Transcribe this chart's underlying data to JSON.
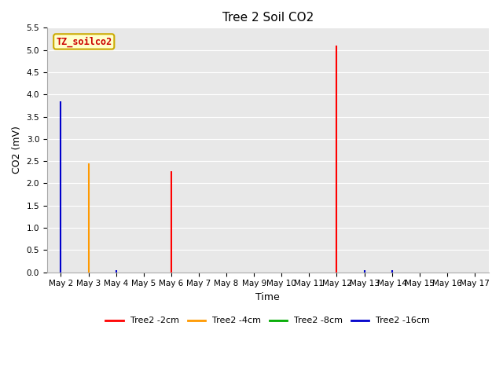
{
  "title": "Tree 2 Soil CO2",
  "xlabel": "Time",
  "ylabel": "CO2 (mV)",
  "ylim": [
    0.0,
    5.5
  ],
  "yticks": [
    0.0,
    0.5,
    1.0,
    1.5,
    2.0,
    2.5,
    3.0,
    3.5,
    4.0,
    4.5,
    5.0,
    5.5
  ],
  "annotation": "TZ_soilco2",
  "annotation_color": "#cc0000",
  "annotation_bg": "#ffffcc",
  "annotation_edge": "#ccaa00",
  "background_color": "#e8e8e8",
  "fig_bg": "#ffffff",
  "series": [
    {
      "label": "Tree2 -2cm",
      "color": "#ff0000",
      "data": [
        [
          "May 2",
          0.0
        ],
        [
          "May 3",
          0.0
        ],
        [
          "May 4",
          0.0
        ],
        [
          "May 5",
          0.0
        ],
        [
          "May 6",
          2.28
        ],
        [
          "May 7",
          0.0
        ],
        [
          "May 8",
          0.0
        ],
        [
          "May 9",
          0.0
        ],
        [
          "May 10",
          0.0
        ],
        [
          "May 11",
          0.0
        ],
        [
          "May 12",
          5.1
        ],
        [
          "May 13",
          0.0
        ],
        [
          "May 14",
          0.0
        ],
        [
          "May 15",
          0.0
        ],
        [
          "May 16",
          0.0
        ],
        [
          "May 17",
          0.0
        ]
      ]
    },
    {
      "label": "Tree2 -4cm",
      "color": "#ff9900",
      "data": [
        [
          "May 2",
          0.0
        ],
        [
          "May 3",
          2.45
        ],
        [
          "May 4",
          0.0
        ],
        [
          "May 5",
          0.0
        ],
        [
          "May 6",
          0.0
        ],
        [
          "May 7",
          0.0
        ],
        [
          "May 8",
          0.0
        ],
        [
          "May 9",
          0.0
        ],
        [
          "May 10",
          0.0
        ],
        [
          "May 11",
          0.0
        ],
        [
          "May 12",
          0.0
        ],
        [
          "May 13",
          0.0
        ],
        [
          "May 14",
          0.0
        ],
        [
          "May 15",
          0.0
        ],
        [
          "May 16",
          0.0
        ],
        [
          "May 17",
          0.0
        ]
      ]
    },
    {
      "label": "Tree2 -8cm",
      "color": "#00aa00",
      "data": [
        [
          "May 2",
          0.0
        ],
        [
          "May 3",
          0.0
        ],
        [
          "May 4",
          0.0
        ],
        [
          "May 5",
          0.0
        ],
        [
          "May 6",
          0.0
        ],
        [
          "May 7",
          0.0
        ],
        [
          "May 8",
          0.0
        ],
        [
          "May 9",
          0.0
        ],
        [
          "May 10",
          0.0
        ],
        [
          "May 11",
          0.0
        ],
        [
          "May 12",
          0.0
        ],
        [
          "May 13",
          0.04
        ],
        [
          "May 14",
          0.0
        ],
        [
          "May 15",
          0.0
        ],
        [
          "May 16",
          0.0
        ],
        [
          "May 17",
          0.0
        ]
      ]
    },
    {
      "label": "Tree2 -16cm",
      "color": "#0000cc",
      "data": [
        [
          "May 2",
          3.85
        ],
        [
          "May 3",
          0.0
        ],
        [
          "May 4",
          0.04
        ],
        [
          "May 5",
          0.0
        ],
        [
          "May 6",
          0.0
        ],
        [
          "May 7",
          0.0
        ],
        [
          "May 8",
          0.0
        ],
        [
          "May 9",
          0.0
        ],
        [
          "May 10",
          0.0
        ],
        [
          "May 11",
          0.0
        ],
        [
          "May 12",
          0.0
        ],
        [
          "May 13",
          0.04
        ],
        [
          "May 14",
          0.04
        ],
        [
          "May 15",
          0.0
        ],
        [
          "May 16",
          0.0
        ],
        [
          "May 17",
          0.0
        ]
      ]
    }
  ],
  "x_labels": [
    "May 2",
    "May 3",
    "May 4",
    "May 5",
    "May 6",
    "May 7",
    "May 8",
    "May 9",
    "May 10",
    "May 11",
    "May 12",
    "May 13",
    "May 14",
    "May 15",
    "May 16",
    "May 17"
  ],
  "title_fontsize": 11,
  "axis_label_fontsize": 9,
  "tick_fontsize": 7.5
}
